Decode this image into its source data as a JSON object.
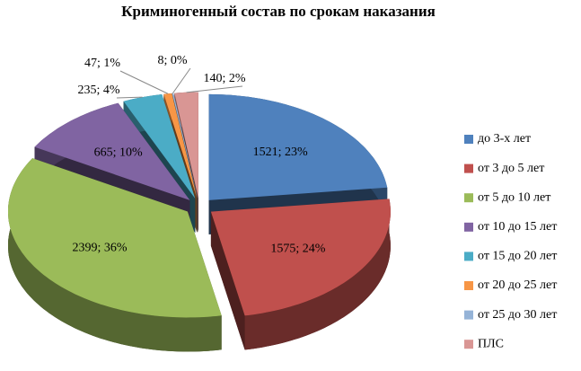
{
  "chart_data": {
    "type": "pie",
    "title": "Криминогенный состав по срокам наказания",
    "categories": [
      "до 3-х лет",
      "от 3 до 5 лет",
      "от 5 до 10 лет",
      "от 10 до 15 лет",
      "от 15 до 20 лет",
      "от 20 до 25 лет",
      "от 25 до 30 лет",
      "ПЛС"
    ],
    "values": [
      1521,
      1575,
      2399,
      665,
      235,
      47,
      8,
      140
    ],
    "value_labels": [
      "1521; 23%",
      "1575; 24%",
      "2399; 36%",
      "665; 10%",
      "235; 4%",
      "47; 1%",
      "8; 0%",
      "140; 2%"
    ],
    "colors": [
      "#4f81bd",
      "#c0504d",
      "#9bbb59",
      "#8064a2",
      "#4bacc6",
      "#f79646",
      "#95b3d7",
      "#d99694"
    ],
    "legend": "right"
  }
}
